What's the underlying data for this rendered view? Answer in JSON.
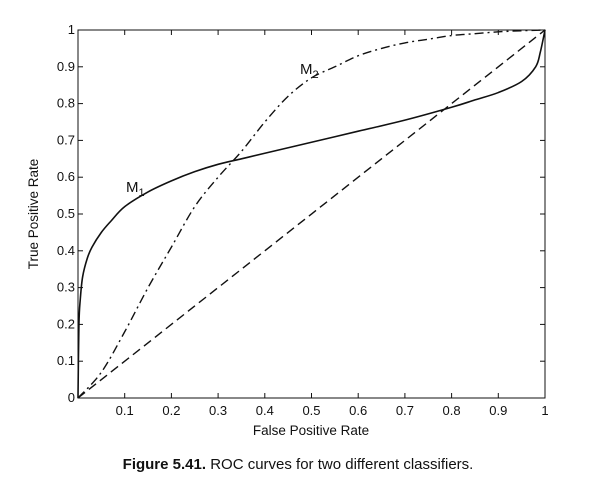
{
  "chart_data": {
    "type": "line",
    "xlabel": "False Positive Rate",
    "ylabel": "True Positive Rate",
    "xlim": [
      0,
      1
    ],
    "ylim": [
      0,
      1
    ],
    "xticks": [
      "",
      "0.1",
      "0.2",
      "0.3",
      "0.4",
      "0.5",
      "0.6",
      "0.7",
      "0.8",
      "0.9",
      "1"
    ],
    "yticks": [
      "0",
      "0.1",
      "0.2",
      "0.3",
      "0.4",
      "0.5",
      "0.6",
      "0.7",
      "0.8",
      "0.9",
      "1"
    ],
    "grid": false,
    "series": [
      {
        "name": "M1",
        "label_main": "M",
        "label_sub": "1",
        "style": "solid",
        "x": [
          0,
          0.002,
          0.005,
          0.01,
          0.02,
          0.03,
          0.05,
          0.07,
          0.1,
          0.15,
          0.2,
          0.25,
          0.3,
          0.35,
          0.4,
          0.5,
          0.6,
          0.7,
          0.8,
          0.85,
          0.9,
          0.95,
          0.98,
          0.99,
          1.0
        ],
        "y": [
          0,
          0.2,
          0.27,
          0.33,
          0.38,
          0.41,
          0.45,
          0.48,
          0.52,
          0.56,
          0.59,
          0.615,
          0.635,
          0.65,
          0.665,
          0.695,
          0.725,
          0.755,
          0.79,
          0.81,
          0.83,
          0.86,
          0.9,
          0.94,
          1.0
        ]
      },
      {
        "name": "M2",
        "label_main": "M",
        "label_sub": "2",
        "style": "dashdot",
        "x": [
          0,
          0.05,
          0.1,
          0.15,
          0.2,
          0.25,
          0.3,
          0.35,
          0.4,
          0.45,
          0.5,
          0.55,
          0.6,
          0.65,
          0.7,
          0.75,
          0.8,
          0.85,
          0.9,
          0.95,
          1.0
        ],
        "y": [
          0,
          0.07,
          0.18,
          0.3,
          0.41,
          0.52,
          0.6,
          0.67,
          0.75,
          0.82,
          0.87,
          0.9,
          0.93,
          0.95,
          0.965,
          0.975,
          0.985,
          0.99,
          0.995,
          0.998,
          1.0
        ]
      },
      {
        "name": "",
        "style": "dashed",
        "x": [
          0,
          1
        ],
        "y": [
          0,
          1
        ]
      }
    ]
  },
  "caption": {
    "number": "Figure 5.41.",
    "text": "ROC curves for two different classifiers."
  }
}
